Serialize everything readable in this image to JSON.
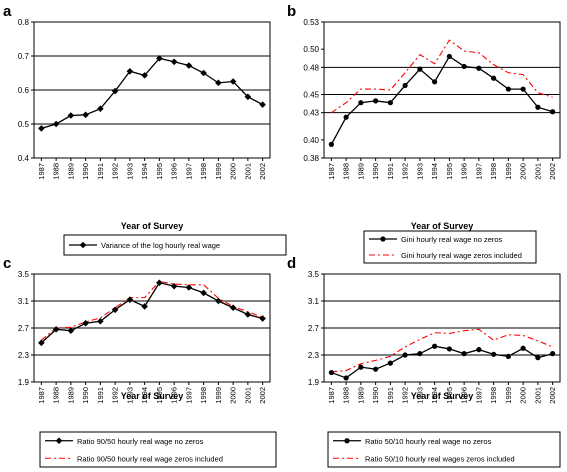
{
  "chart_data": [
    {
      "panel": "a",
      "type": "line",
      "x": [
        "1987",
        "1988",
        "1989",
        "1990",
        "1991",
        "1992",
        "1993",
        "1994",
        "1995",
        "1996",
        "1997",
        "1998",
        "1999",
        "2000",
        "2001",
        "2002"
      ],
      "xlabel": "Year of Survey",
      "ylim": [
        0.4,
        0.8
      ],
      "yticks": [
        0.4,
        0.5,
        0.6,
        0.7,
        0.8
      ],
      "ytick_labels": [
        "0.4",
        "0.5",
        "0.6",
        "0.7",
        "0.8"
      ],
      "grid_values": [
        0.5,
        0.6,
        0.7
      ],
      "series": [
        {
          "name": "Variance of the log hourly real wage",
          "color": "#000000",
          "dash": "",
          "marker": "diamond",
          "values": [
            0.487,
            0.5,
            0.525,
            0.527,
            0.545,
            0.597,
            0.655,
            0.643,
            0.693,
            0.683,
            0.672,
            0.65,
            0.621,
            0.625,
            0.58,
            0.557
          ]
        }
      ],
      "legend_position": "bottom"
    },
    {
      "panel": "b",
      "type": "line",
      "x": [
        "1987",
        "1988",
        "1989",
        "1990",
        "1991",
        "1992",
        "1993",
        "1994",
        "1995",
        "1996",
        "1997",
        "1998",
        "1999",
        "2000",
        "2001",
        "2002"
      ],
      "xlabel": "Year of Survey",
      "ylim": [
        0.38,
        0.53
      ],
      "yticks": [
        0.38,
        0.4,
        0.43,
        0.45,
        0.48,
        0.5,
        0.53
      ],
      "ytick_labels": [
        "0.38",
        "0.40",
        "0.43",
        "0.45",
        "0.48",
        "0.50",
        "0.53"
      ],
      "grid_values": [
        0.43,
        0.45,
        0.48
      ],
      "series": [
        {
          "name": "Gini hourly real wage no zeros",
          "color": "#000000",
          "dash": "",
          "marker": "circle",
          "values": [
            0.395,
            0.425,
            0.441,
            0.443,
            0.441,
            0.46,
            0.478,
            0.464,
            0.492,
            0.481,
            0.479,
            0.468,
            0.456,
            0.456,
            0.436,
            0.431
          ]
        },
        {
          "name": "Gini hourly real wage zeros included",
          "color": "#ff0000",
          "dash": "6,3,2,3",
          "marker": "none",
          "values": [
            0.43,
            0.441,
            0.456,
            0.456,
            0.455,
            0.474,
            0.494,
            0.484,
            0.51,
            0.498,
            0.496,
            0.483,
            0.474,
            0.472,
            0.452,
            0.447
          ]
        }
      ],
      "legend_position": "bottom"
    },
    {
      "panel": "c",
      "type": "line",
      "x": [
        "1987",
        "1988",
        "1989",
        "1990",
        "1991",
        "1992",
        "1993",
        "1994",
        "1995",
        "1996",
        "1997",
        "1998",
        "1999",
        "2000",
        "2001",
        "2002"
      ],
      "xlabel": "Year of Survey",
      "ylim": [
        1.9,
        3.5
      ],
      "yticks": [
        1.9,
        2.3,
        2.7,
        3.1,
        3.5
      ],
      "ytick_labels": [
        "1.9",
        "2.3",
        "2.7",
        "3.1",
        "3.5"
      ],
      "grid_values": [
        2.3,
        2.7,
        3.1
      ],
      "series": [
        {
          "name": "Ratio 90/50 hourly real wage no zeros",
          "color": "#000000",
          "dash": "",
          "marker": "diamond",
          "values": [
            2.48,
            2.68,
            2.66,
            2.77,
            2.8,
            2.97,
            3.12,
            3.02,
            3.37,
            3.32,
            3.3,
            3.22,
            3.1,
            3.0,
            2.9,
            2.84
          ]
        },
        {
          "name": "Ratio 90/50 hourly real wage zeros included",
          "color": "#ff0000",
          "dash": "6,3,2,3",
          "marker": "none",
          "values": [
            2.52,
            2.7,
            2.71,
            2.79,
            2.85,
            3.0,
            3.15,
            3.15,
            3.39,
            3.35,
            3.34,
            3.34,
            3.14,
            3.02,
            2.94,
            2.86
          ]
        }
      ],
      "legend_position": "bottom"
    },
    {
      "panel": "d",
      "type": "line",
      "x": [
        "1987",
        "1988",
        "1989",
        "1990",
        "1991",
        "1992",
        "1993",
        "1994",
        "1995",
        "1996",
        "1997",
        "1998",
        "1999",
        "2000",
        "2001",
        "2002"
      ],
      "xlabel": "Year of Survey",
      "ylim": [
        1.9,
        3.5
      ],
      "yticks": [
        1.9,
        2.3,
        2.7,
        3.1,
        3.5
      ],
      "ytick_labels": [
        "1.9",
        "2.3",
        "2.7",
        "3.1",
        "3.5"
      ],
      "grid_values": [
        2.3,
        2.7,
        3.1
      ],
      "series": [
        {
          "name": "Ratio 50/10 hourly real wage no zeros",
          "color": "#000000",
          "dash": "",
          "marker": "circle",
          "values": [
            2.04,
            1.96,
            2.12,
            2.09,
            2.18,
            2.3,
            2.32,
            2.43,
            2.39,
            2.32,
            2.38,
            2.31,
            2.28,
            2.4,
            2.26,
            2.32
          ]
        },
        {
          "name": "Ratio 50/10 hourly real wages zeros included",
          "color": "#ff0000",
          "dash": "6,3,2,3",
          "marker": "none",
          "values": [
            2.05,
            2.07,
            2.17,
            2.22,
            2.28,
            2.42,
            2.53,
            2.63,
            2.62,
            2.66,
            2.68,
            2.52,
            2.6,
            2.59,
            2.51,
            2.42
          ]
        }
      ],
      "legend_position": "bottom"
    }
  ],
  "panel_labels": [
    "a",
    "b",
    "c",
    "d"
  ]
}
